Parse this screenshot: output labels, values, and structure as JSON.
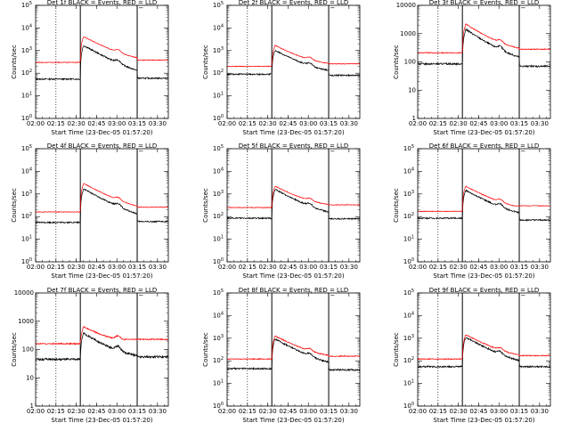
{
  "common": {
    "xlabel": "Start Time (23-Dec-05 01:57:20)",
    "ylabel": "Counts/sec",
    "x_tick_labels": [
      "02:00",
      "02:15",
      "02:30",
      "02:45",
      "03:00",
      "03:15",
      "03:30"
    ],
    "x_range": [
      "02:00",
      "03:38"
    ],
    "dotted_vline": "02:15",
    "solid_vlines": [
      "02:33",
      "03:15"
    ],
    "marker_glyph": "Ⲻ",
    "colors": {
      "events": "#000000",
      "lld": "#ff0000"
    }
  },
  "chart_data": [
    {
      "type": "line",
      "title": "Det 1f BLACK = Events, RED = LLD",
      "yscale": "log",
      "ylim": [
        1,
        100000
      ],
      "ytick_exps": [
        0,
        1,
        2,
        3,
        4,
        5
      ],
      "series": [
        {
          "name": "Events",
          "color": "#000000",
          "baseline": 55,
          "peak": 2000,
          "post": 60,
          "noise": 0.06,
          "hump": 0.35
        },
        {
          "name": "LLD",
          "color": "#ff0000",
          "baseline": 300,
          "peak": 5000,
          "post": 380,
          "noise": 0.03,
          "hump": 0.3
        }
      ]
    },
    {
      "type": "line",
      "title": "Det 2f BLACK = Events, RED = LLD",
      "yscale": "log",
      "ylim": [
        1,
        100000
      ],
      "ytick_exps": [
        0,
        1,
        2,
        3,
        4,
        5
      ],
      "series": [
        {
          "name": "Events",
          "color": "#000000",
          "baseline": 90,
          "peak": 1200,
          "post": 80,
          "noise": 0.06,
          "hump": 0.3
        },
        {
          "name": "LLD",
          "color": "#ff0000",
          "baseline": 200,
          "peak": 2000,
          "post": 260,
          "noise": 0.03,
          "hump": 0.25
        }
      ]
    },
    {
      "type": "line",
      "title": "Det 3f BLACK = Events, RED = LLD",
      "yscale": "log",
      "ylim": [
        1,
        10000
      ],
      "ytick_labels": [
        "1",
        "10",
        "100",
        "1000",
        "10000"
      ],
      "series": [
        {
          "name": "Events",
          "color": "#000000",
          "baseline": 85,
          "peak": 1700,
          "post": 70,
          "noise": 0.06,
          "hump": 0.3
        },
        {
          "name": "LLD",
          "color": "#ff0000",
          "baseline": 210,
          "peak": 2600,
          "post": 280,
          "noise": 0.03,
          "hump": 0.25
        }
      ]
    },
    {
      "type": "line",
      "title": "Det 4f BLACK = Events, RED = LLD",
      "yscale": "log",
      "ylim": [
        1,
        100000
      ],
      "ytick_exps": [
        0,
        1,
        2,
        3,
        4,
        5
      ],
      "series": [
        {
          "name": "Events",
          "color": "#000000",
          "baseline": 55,
          "peak": 2000,
          "post": 60,
          "noise": 0.06,
          "hump": 0.35
        },
        {
          "name": "LLD",
          "color": "#ff0000",
          "baseline": 160,
          "peak": 3500,
          "post": 260,
          "noise": 0.03,
          "hump": 0.3
        }
      ]
    },
    {
      "type": "line",
      "title": "Det 5f BLACK = Events, RED = LLD",
      "yscale": "log",
      "ylim": [
        1,
        100000
      ],
      "ytick_exps": [
        0,
        1,
        2,
        3,
        4,
        5
      ],
      "series": [
        {
          "name": "Events",
          "color": "#000000",
          "baseline": 85,
          "peak": 1900,
          "post": 80,
          "noise": 0.06,
          "hump": 0.3
        },
        {
          "name": "LLD",
          "color": "#ff0000",
          "baseline": 250,
          "peak": 2600,
          "post": 330,
          "noise": 0.03,
          "hump": 0.25
        }
      ]
    },
    {
      "type": "line",
      "title": "Det 6f BLACK = Events, RED = LLD",
      "yscale": "log",
      "ylim": [
        1,
        100000
      ],
      "ytick_exps": [
        0,
        1,
        2,
        3,
        4,
        5
      ],
      "series": [
        {
          "name": "Events",
          "color": "#000000",
          "baseline": 85,
          "peak": 1700,
          "post": 70,
          "noise": 0.06,
          "hump": 0.35
        },
        {
          "name": "LLD",
          "color": "#ff0000",
          "baseline": 170,
          "peak": 2600,
          "post": 300,
          "noise": 0.03,
          "hump": 0.3
        }
      ]
    },
    {
      "type": "line",
      "title": "Det 7f BLACK = Events, RED = LLD",
      "yscale": "log",
      "ylim": [
        1,
        10000
      ],
      "ytick_labels": [
        "1",
        "10",
        "100",
        "1000",
        "10000"
      ],
      "series": [
        {
          "name": "Events",
          "color": "#000000",
          "baseline": 45,
          "peak": 450,
          "post": 55,
          "noise": 0.08,
          "hump": 0.4
        },
        {
          "name": "LLD",
          "color": "#ff0000",
          "baseline": 160,
          "peak": 750,
          "post": 230,
          "noise": 0.04,
          "hump": 0.35
        }
      ]
    },
    {
      "type": "line",
      "title": "Det 8f BLACK = Events, RED = LLD",
      "yscale": "log",
      "ylim": [
        1,
        100000
      ],
      "ytick_exps": [
        0,
        1,
        2,
        3,
        4,
        5
      ],
      "series": [
        {
          "name": "Events",
          "color": "#000000",
          "baseline": 45,
          "peak": 1100,
          "post": 40,
          "noise": 0.07,
          "hump": 0.3
        },
        {
          "name": "LLD",
          "color": "#ff0000",
          "baseline": 120,
          "peak": 1500,
          "post": 160,
          "noise": 0.04,
          "hump": 0.25
        }
      ]
    },
    {
      "type": "line",
      "title": "Det 9f BLACK = Events, RED = LLD",
      "yscale": "log",
      "ylim": [
        1,
        100000
      ],
      "ytick_exps": [
        0,
        1,
        2,
        3,
        4,
        5
      ],
      "series": [
        {
          "name": "Events",
          "color": "#000000",
          "baseline": 55,
          "peak": 1300,
          "post": 55,
          "noise": 0.07,
          "hump": 0.3
        },
        {
          "name": "LLD",
          "color": "#ff0000",
          "baseline": 120,
          "peak": 1700,
          "post": 170,
          "noise": 0.04,
          "hump": 0.25
        }
      ]
    }
  ]
}
